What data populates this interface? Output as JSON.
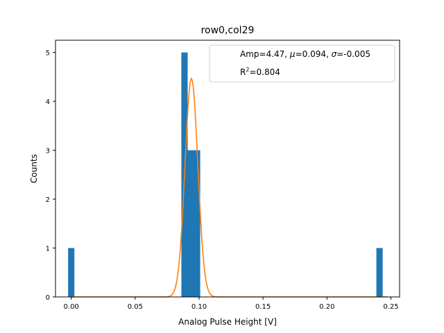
{
  "chart_data": {
    "type": "bar",
    "title": "row0,col29",
    "xlabel": "Analog Pulse Height [V]",
    "ylabel": "Counts",
    "xlim": [
      -0.0123,
      0.2568
    ],
    "ylim": [
      0,
      5.25
    ],
    "xticks": [
      0.0,
      0.05,
      0.1,
      0.15,
      0.2,
      0.25
    ],
    "xtick_labels": [
      "0.00",
      "0.05",
      "0.10",
      "0.15",
      "0.20",
      "0.25"
    ],
    "yticks": [
      0,
      1,
      2,
      3,
      4,
      5
    ],
    "ytick_labels": [
      "0",
      "1",
      "2",
      "3",
      "4",
      "5"
    ],
    "grid": false,
    "bin_width": 0.00492,
    "bars": [
      {
        "x": 0.0,
        "count": 1
      },
      {
        "x": 0.0886,
        "count": 5
      },
      {
        "x": 0.0935,
        "count": 3
      },
      {
        "x": 0.0984,
        "count": 3
      },
      {
        "x": 0.2411,
        "count": 1
      }
    ],
    "fit": {
      "name": "Gaussian fit",
      "amp": 4.47,
      "mu": 0.094,
      "sigma": -0.005,
      "r2": 0.804
    },
    "legend": {
      "position": "top-right",
      "line1_prefix": "Amp=4.47, ",
      "line1_mu_sym": "μ",
      "line1_mu_val": "=0.094, ",
      "line1_sigma_sym": "σ",
      "line1_sigma_val": "=-0.005",
      "line2_prefix": "R",
      "line2_sup": "2",
      "line2_val": "=0.804"
    },
    "colors": {
      "bar": "#1f77b4",
      "fit": "#ff7f0e",
      "axis": "#000000",
      "legend_border": "#cccccc"
    }
  }
}
